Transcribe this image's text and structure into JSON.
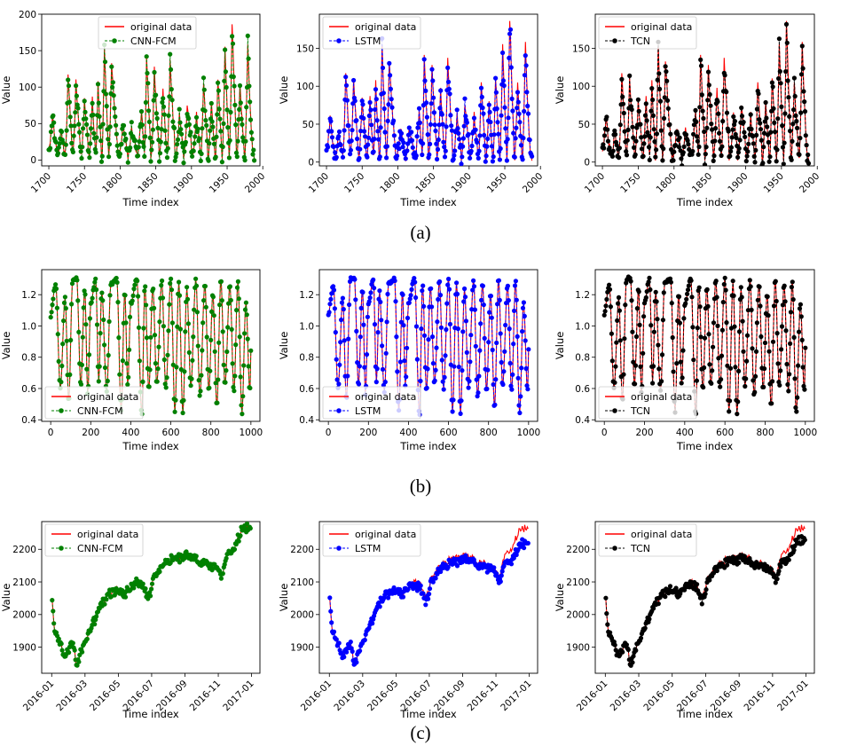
{
  "colors": {
    "original": "#ff0000",
    "CNN-FCM": "#008000",
    "LSTM": "#0000ff",
    "TCN": "#000000"
  },
  "captions": [
    "(a)",
    "(b)",
    "(c)"
  ],
  "chart_data": [
    {
      "id": "a",
      "type": "line",
      "xlabel": "Time index",
      "ylabel": "Value",
      "xlim": [
        1690,
        1996
      ],
      "xticks": [
        1700,
        1750,
        1800,
        1850,
        1900,
        1950,
        2000
      ],
      "xtick_labels": [
        "1700",
        "1750",
        "1800",
        "1850",
        "1900",
        "1950",
        "2000"
      ],
      "xtick_rotate": true,
      "dataset": "sunspot",
      "x": {
        "start": 1700,
        "end": 1988,
        "step": 1
      },
      "peaks": [
        [
          1705,
          58
        ],
        [
          1717,
          40
        ],
        [
          1727,
          122
        ],
        [
          1738,
          111
        ],
        [
          1750,
          83
        ],
        [
          1761,
          86
        ],
        [
          1769,
          106
        ],
        [
          1778,
          154
        ],
        [
          1788,
          132
        ],
        [
          1804,
          48
        ],
        [
          1816,
          46
        ],
        [
          1830,
          71
        ],
        [
          1837,
          138
        ],
        [
          1848,
          124
        ],
        [
          1860,
          96
        ],
        [
          1870,
          139
        ],
        [
          1883,
          64
        ],
        [
          1894,
          78
        ],
        [
          1907,
          62
        ],
        [
          1917,
          104
        ],
        [
          1928,
          78
        ],
        [
          1937,
          114
        ],
        [
          1947,
          152
        ],
        [
          1957,
          190
        ],
        [
          1968,
          106
        ],
        [
          1979,
          155
        ]
      ],
      "panels": [
        {
          "model": "CNN-FCM",
          "legend_loc": "upper center",
          "ylim": [
            -8,
            200
          ],
          "yticks": [
            0,
            50,
            100,
            150,
            200
          ],
          "legend": [
            "original data",
            "CNN-FCM"
          ]
        },
        {
          "model": "LSTM",
          "legend_loc": "upper left",
          "ylim": [
            -5,
            195
          ],
          "yticks": [
            0,
            50,
            100,
            150
          ],
          "legend": [
            "original data",
            "LSTM"
          ]
        },
        {
          "model": "TCN",
          "legend_loc": "upper left",
          "ylim": [
            -5,
            195
          ],
          "yticks": [
            0,
            50,
            100,
            150
          ],
          "legend": [
            "original data",
            "TCN"
          ]
        }
      ]
    },
    {
      "id": "b",
      "type": "line",
      "xlabel": "Time index",
      "ylabel": "Value",
      "xlim": [
        -45,
        1045
      ],
      "xticks": [
        0,
        200,
        400,
        600,
        800,
        1000
      ],
      "xtick_labels": [
        "0",
        "200",
        "400",
        "600",
        "800",
        "1000"
      ],
      "xtick_rotate": false,
      "ylim": [
        0.39,
        1.36
      ],
      "yticks": [
        0.4,
        0.6,
        0.8,
        1.0,
        1.2
      ],
      "ytick_labels": [
        "0.4",
        "0.6",
        "0.8",
        "1.0",
        "1.2"
      ],
      "dataset": "mackey-glass",
      "x": {
        "start": 0,
        "end": 1000,
        "step": 4
      },
      "peaks": [
        [
          25,
          1.26
        ],
        [
          72,
          1.18
        ],
        [
          110,
          1.3
        ],
        [
          130,
          1.31
        ],
        [
          170,
          1.24
        ],
        [
          200,
          1.15
        ],
        [
          225,
          1.3
        ],
        [
          255,
          1.22
        ],
        [
          300,
          1.27
        ],
        [
          330,
          1.3
        ],
        [
          370,
          1.22
        ],
        [
          400,
          1.14
        ],
        [
          430,
          1.3
        ],
        [
          470,
          1.27
        ],
        [
          510,
          1.25
        ],
        [
          555,
          1.29
        ],
        [
          600,
          1.31
        ],
        [
          640,
          1.28
        ],
        [
          680,
          1.24
        ],
        [
          725,
          1.3
        ],
        [
          770,
          1.27
        ],
        [
          810,
          1.21
        ],
        [
          850,
          1.3
        ],
        [
          895,
          1.26
        ],
        [
          935,
          1.29
        ],
        [
          975,
          1.15
        ]
      ],
      "troughs": [
        [
          48,
          0.6
        ],
        [
          90,
          0.52
        ],
        [
          150,
          0.62
        ],
        [
          185,
          0.56
        ],
        [
          240,
          0.64
        ],
        [
          280,
          0.58
        ],
        [
          352,
          0.45
        ],
        [
          385,
          0.62
        ],
        [
          455,
          0.43
        ],
        [
          490,
          0.59
        ],
        [
          530,
          0.63
        ],
        [
          575,
          0.6
        ],
        [
          620,
          0.45
        ],
        [
          660,
          0.44
        ],
        [
          700,
          0.61
        ],
        [
          745,
          0.55
        ],
        [
          790,
          0.59
        ],
        [
          830,
          0.48
        ],
        [
          870,
          0.62
        ],
        [
          915,
          0.58
        ],
        [
          955,
          0.44
        ],
        [
          995,
          0.58
        ]
      ],
      "panels": [
        {
          "model": "CNN-FCM",
          "legend_loc": "lower left",
          "legend": [
            "original data",
            "CNN-FCM"
          ]
        },
        {
          "model": "LSTM",
          "legend_loc": "lower left",
          "legend": [
            "original data",
            "LSTM"
          ]
        },
        {
          "model": "TCN",
          "legend_loc": "lower left",
          "legend": [
            "original data",
            "TCN"
          ]
        }
      ]
    },
    {
      "id": "c",
      "type": "line",
      "xlabel": "Time index",
      "ylabel": "Value",
      "xlim": [
        -0.6,
        12.5
      ],
      "xticks": [
        0,
        2,
        4,
        6,
        8,
        10,
        12
      ],
      "xtick_labels": [
        "2016-01",
        "2016-03",
        "2016-05",
        "2016-07",
        "2016-09",
        "2016-11",
        "2017-01"
      ],
      "xtick_rotate": true,
      "ylim": [
        1820,
        2285
      ],
      "yticks": [
        1900,
        2000,
        2100,
        2200
      ],
      "ytick_labels": [
        "1900",
        "2000",
        "2100",
        "2200"
      ],
      "dataset": "stock-index-2016",
      "x": {
        "start": 0.03,
        "end": 11.95,
        "step": 0.05
      },
      "trend": [
        [
          0.03,
          2038
        ],
        [
          0.2,
          1945
        ],
        [
          0.5,
          1910
        ],
        [
          0.8,
          1870
        ],
        [
          1.1,
          1905
        ],
        [
          1.35,
          1900
        ],
        [
          1.45,
          1848
        ],
        [
          1.75,
          1880
        ],
        [
          2.0,
          1915
        ],
        [
          2.5,
          1975
        ],
        [
          3.0,
          2030
        ],
        [
          3.5,
          2065
        ],
        [
          4.0,
          2080
        ],
        [
          4.4,
          2060
        ],
        [
          4.8,
          2085
        ],
        [
          5.2,
          2100
        ],
        [
          5.6,
          2085
        ],
        [
          5.8,
          2040
        ],
        [
          6.1,
          2110
        ],
        [
          6.6,
          2150
        ],
        [
          7.0,
          2165
        ],
        [
          7.5,
          2170
        ],
        [
          8.0,
          2180
        ],
        [
          8.5,
          2175
        ],
        [
          8.8,
          2165
        ],
        [
          9.2,
          2160
        ],
        [
          9.6,
          2150
        ],
        [
          10.0,
          2140
        ],
        [
          10.2,
          2105
        ],
        [
          10.5,
          2175
        ],
        [
          11.0,
          2210
        ],
        [
          11.4,
          2255
        ],
        [
          11.9,
          2270
        ]
      ],
      "panels": [
        {
          "model": "CNN-FCM",
          "legend_loc": "upper left",
          "tail_shift": 0,
          "legend": [
            "original data",
            "CNN-FCM"
          ]
        },
        {
          "model": "LSTM",
          "legend_loc": "upper left",
          "tail_shift": -45,
          "legend": [
            "original data",
            "LSTM"
          ]
        },
        {
          "model": "TCN",
          "legend_loc": "upper left",
          "tail_shift": -38,
          "legend": [
            "original data",
            "TCN"
          ]
        }
      ]
    }
  ]
}
